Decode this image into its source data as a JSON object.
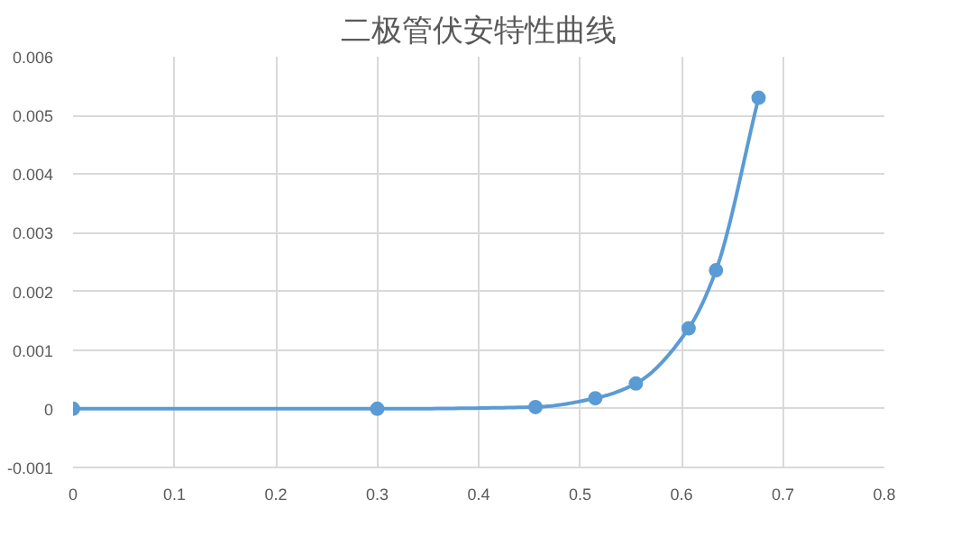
{
  "chart_data": {
    "type": "line",
    "title": "二极管伏安特性曲线",
    "x": [
      0,
      0.3,
      0.456,
      0.515,
      0.555,
      0.607,
      0.634,
      0.676
    ],
    "series": [
      {
        "color": "#5b9bd5",
        "values": [
          0,
          0,
          3e-05,
          0.00018,
          0.00043,
          0.00137,
          0.00236,
          0.0053
        ]
      }
    ],
    "xlim": [
      0,
      0.8
    ],
    "xticks": [
      0,
      0.1,
      0.2,
      0.3,
      0.4,
      0.5,
      0.6,
      0.7,
      0.8
    ],
    "ylim": [
      -0.001,
      0.006
    ],
    "yticks": [
      -0.001,
      0,
      0.001,
      0.002,
      0.003,
      0.004,
      0.005,
      0.006
    ],
    "grid": true,
    "marker": "circle",
    "line_style": "solid"
  }
}
